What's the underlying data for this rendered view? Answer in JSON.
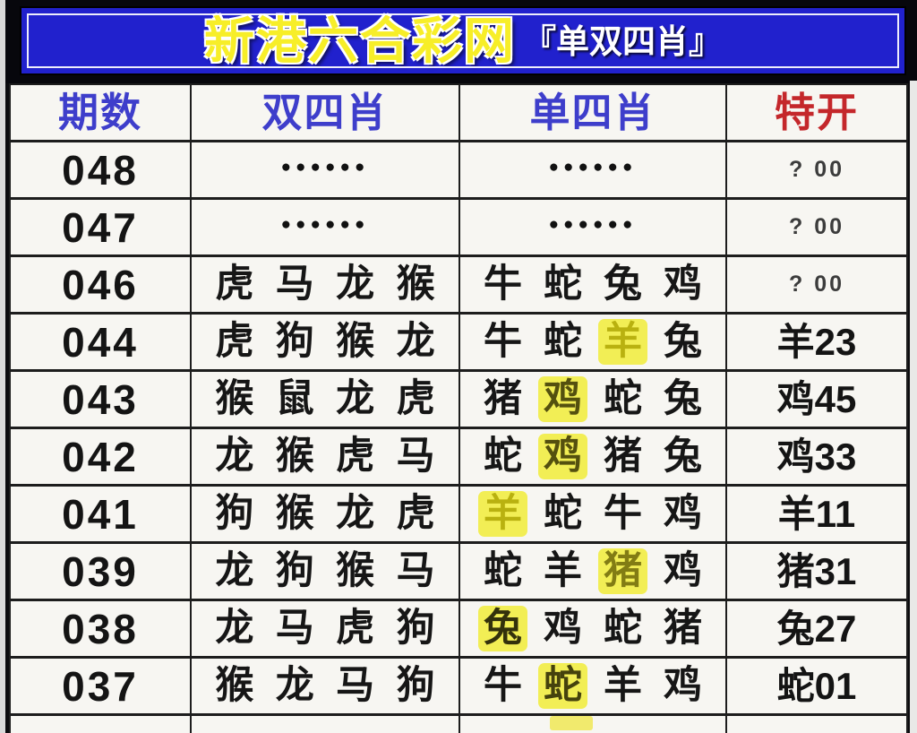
{
  "banner": {
    "title": "新港六合彩网",
    "subtitle": "『单双四肖』"
  },
  "table": {
    "headers": [
      {
        "label": "期数"
      },
      {
        "label": "双四肖"
      },
      {
        "label": "单四肖"
      },
      {
        "label": "特开"
      }
    ],
    "rows": [
      {
        "period": "048",
        "double_dots": "●●●●●●",
        "single_dots": "●●●●●●",
        "special": "? 00",
        "special_small": true
      },
      {
        "period": "047",
        "double_dots": "●●●●●●",
        "single_dots": "●●●●●●",
        "special": "? 00",
        "special_small": true
      },
      {
        "period": "046",
        "double": [
          {
            "c": "虎"
          },
          {
            "c": "马"
          },
          {
            "c": "龙"
          },
          {
            "c": "猴"
          }
        ],
        "single": [
          {
            "c": "牛"
          },
          {
            "c": "蛇"
          },
          {
            "c": "兔"
          },
          {
            "c": "鸡"
          }
        ],
        "special": "? 00",
        "special_small": true
      },
      {
        "period": "044",
        "double": [
          {
            "c": "虎"
          },
          {
            "c": "狗"
          },
          {
            "c": "猴"
          },
          {
            "c": "龙"
          }
        ],
        "single": [
          {
            "c": "牛"
          },
          {
            "c": "蛇"
          },
          {
            "c": "羊",
            "hl": true,
            "fg": "#b9b110"
          },
          {
            "c": "兔"
          }
        ],
        "special": "羊23"
      },
      {
        "period": "043",
        "double": [
          {
            "c": "猴"
          },
          {
            "c": "鼠"
          },
          {
            "c": "龙"
          },
          {
            "c": "虎"
          }
        ],
        "single": [
          {
            "c": "猪"
          },
          {
            "c": "鸡",
            "hl": true,
            "fg": "#54500f"
          },
          {
            "c": "蛇"
          },
          {
            "c": "兔"
          }
        ],
        "special": "鸡45"
      },
      {
        "period": "042",
        "double": [
          {
            "c": "龙"
          },
          {
            "c": "猴"
          },
          {
            "c": "虎"
          },
          {
            "c": "马"
          }
        ],
        "single": [
          {
            "c": "蛇"
          },
          {
            "c": "鸡",
            "hl": true,
            "fg": "#54500f"
          },
          {
            "c": "猪"
          },
          {
            "c": "兔"
          }
        ],
        "special": "鸡33"
      },
      {
        "period": "041",
        "double": [
          {
            "c": "狗"
          },
          {
            "c": "猴"
          },
          {
            "c": "龙"
          },
          {
            "c": "虎"
          }
        ],
        "single": [
          {
            "c": "羊",
            "hl": true,
            "fg": "#b9b110"
          },
          {
            "c": "蛇"
          },
          {
            "c": "牛"
          },
          {
            "c": "鸡"
          }
        ],
        "special": "羊11"
      },
      {
        "period": "039",
        "double": [
          {
            "c": "龙"
          },
          {
            "c": "狗"
          },
          {
            "c": "猴"
          },
          {
            "c": "马"
          }
        ],
        "single": [
          {
            "c": "蛇"
          },
          {
            "c": "羊"
          },
          {
            "c": "猪",
            "hl": true,
            "fg": "#827c14"
          },
          {
            "c": "鸡"
          }
        ],
        "special": "猪31"
      },
      {
        "period": "038",
        "double": [
          {
            "c": "龙"
          },
          {
            "c": "马"
          },
          {
            "c": "虎"
          },
          {
            "c": "狗"
          }
        ],
        "single": [
          {
            "c": "兔",
            "hl": true,
            "fg": "#33310c"
          },
          {
            "c": "鸡"
          },
          {
            "c": "蛇"
          },
          {
            "c": "猪"
          }
        ],
        "special": "兔27"
      },
      {
        "period": "037",
        "double": [
          {
            "c": "猴"
          },
          {
            "c": "龙"
          },
          {
            "c": "马"
          },
          {
            "c": "狗"
          }
        ],
        "single": [
          {
            "c": "牛"
          },
          {
            "c": "蛇",
            "hl": true,
            "fg": "#45420d"
          },
          {
            "c": "羊"
          },
          {
            "c": "鸡"
          }
        ],
        "special": "蛇01"
      }
    ]
  },
  "colors": {
    "banner_bg": "#2121cd",
    "banner_title": "#f7ee28",
    "header_blue": "#3e3ecb",
    "header_red": "#c4272b",
    "highlight": "#f2ee55",
    "cell_bg": "#f7f6f2",
    "border": "#1d1d1d"
  }
}
